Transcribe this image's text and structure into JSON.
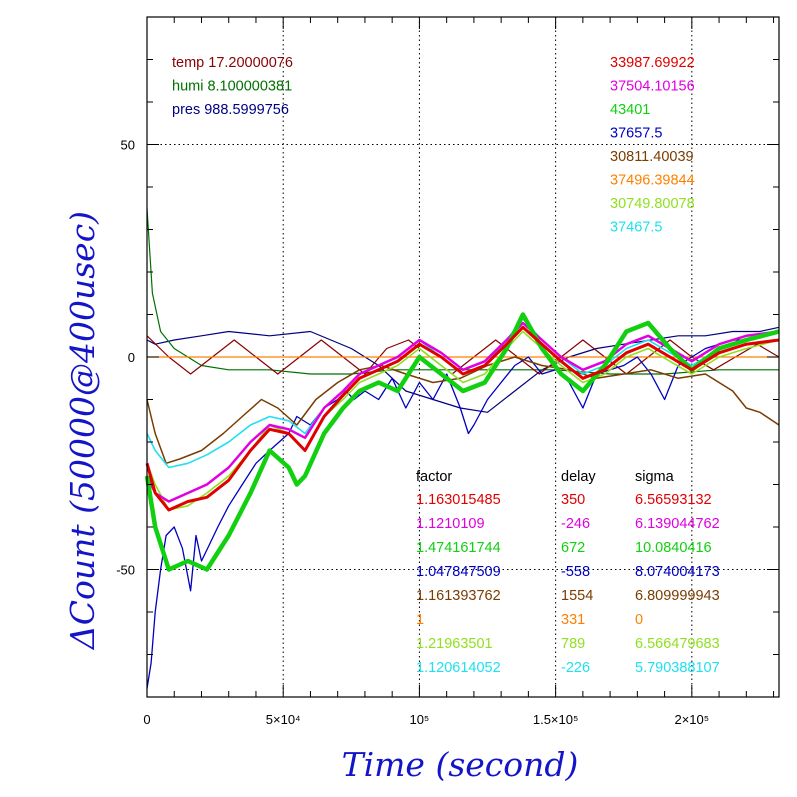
{
  "chart_data": {
    "type": "line",
    "xlabel": "Time (second)",
    "ylabel": "ΔCount (50000@400usec)",
    "xlim": [
      0,
      232000
    ],
    "ylim": [
      -80,
      80
    ],
    "grid": true,
    "x_ticks": [
      {
        "value": 0,
        "label": "0"
      },
      {
        "value": 50000,
        "label": "5×10⁴"
      },
      {
        "value": 100000,
        "label": "10⁵"
      },
      {
        "value": 150000,
        "label": "1.5×10⁵"
      },
      {
        "value": 200000,
        "label": "2×10⁵"
      }
    ],
    "y_ticks": [
      {
        "value": 50,
        "label": "50"
      },
      {
        "value": 0,
        "label": "0"
      },
      {
        "value": -50,
        "label": "-50"
      }
    ],
    "environment": [
      {
        "label": "temp 17.20000076",
        "color": "#8b0000"
      },
      {
        "label": "humi 8.100000381",
        "color": "#007000"
      },
      {
        "label": "pres 988.5999756",
        "color": "#000080"
      }
    ],
    "counts": [
      {
        "value": "33987.69922",
        "color": "#e00000"
      },
      {
        "value": "37504.10156",
        "color": "#e000e0"
      },
      {
        "value": "43401",
        "color": "#10d010"
      },
      {
        "value": "37657.5",
        "color": "#0000c0"
      },
      {
        "value": "30811.40039",
        "color": "#7a3c00"
      },
      {
        "value": "37496.39844",
        "color": "#ff8000"
      },
      {
        "value": "30749.80078",
        "color": "#90e020"
      },
      {
        "value": "37467.5",
        "color": "#20e0f0"
      }
    ],
    "table": {
      "headers": [
        "factor",
        "delay",
        "sigma"
      ],
      "rows": [
        {
          "factor": "1.163015485",
          "delay": "350",
          "sigma": "6.56593132",
          "color": "#e00000"
        },
        {
          "factor": "1.1210109",
          "delay": "-246",
          "sigma": "6.139044762",
          "color": "#e000e0"
        },
        {
          "factor": "1.474161744",
          "delay": "672",
          "sigma": "10.0840416",
          "color": "#10d010"
        },
        {
          "factor": "1.047847509",
          "delay": "-558",
          "sigma": "8.074004173",
          "color": "#0000c0"
        },
        {
          "factor": "1.161393762",
          "delay": "1554",
          "sigma": "6.809999943",
          "color": "#7a3c00"
        },
        {
          "factor": "1",
          "delay": "331",
          "sigma": "0",
          "color": "#ff8000"
        },
        {
          "factor": "1.21963501",
          "delay": "789",
          "sigma": "6.566479683",
          "color": "#90e020"
        },
        {
          "factor": "1.120614052",
          "delay": "-226",
          "sigma": "5.790388107",
          "color": "#20e0f0"
        }
      ]
    },
    "series": [
      {
        "color": "#000080",
        "width": 1.2,
        "x": [
          0,
          3000,
          10000,
          20000,
          30000,
          45000,
          60000,
          75000,
          85000,
          95000,
          105000,
          115000,
          125000,
          135000,
          145000,
          155000,
          165000,
          175000,
          185000,
          195000,
          205000,
          215000,
          225000,
          232000
        ],
        "y": [
          4,
          3,
          4,
          5,
          6,
          5,
          6,
          2,
          -2,
          -8,
          -10,
          -12,
          -13,
          -8,
          -3,
          0,
          2,
          3,
          4,
          5,
          5,
          6,
          6,
          7
        ]
      },
      {
        "color": "#007000",
        "width": 1.2,
        "x": [
          0,
          2000,
          5000,
          10000,
          20000,
          30000,
          45000,
          60000,
          75000,
          90000,
          110000,
          130000,
          150000,
          170000,
          190000,
          210000,
          232000
        ],
        "y": [
          35,
          15,
          6,
          2,
          -2,
          -3,
          -3,
          -4,
          -4,
          -3,
          -3,
          -3,
          -3,
          -4,
          -4,
          -3,
          -3
        ]
      },
      {
        "color": "#8b0000",
        "width": 1.2,
        "x": [
          0,
          8000,
          16000,
          24000,
          32000,
          40000,
          48000,
          56000,
          64000,
          72000,
          80000,
          88000,
          96000,
          104000,
          112000,
          120000,
          128000,
          136000,
          144000,
          152000,
          160000,
          168000,
          176000,
          184000,
          192000,
          200000,
          208000,
          216000,
          224000,
          232000
        ],
        "y": [
          5,
          0,
          -4,
          0,
          4,
          0,
          -4,
          0,
          4,
          0,
          -4,
          2,
          4,
          0,
          -4,
          0,
          4,
          0,
          -4,
          0,
          4,
          0,
          -4,
          0,
          4,
          0,
          -3,
          0,
          3,
          0
        ]
      },
      {
        "color": "#ff8000",
        "width": 1.2,
        "x": [
          0,
          232000
        ],
        "y": [
          0,
          0
        ]
      },
      {
        "color": "#0000c0",
        "width": 1.3,
        "x": [
          0,
          1500,
          3000,
          5000,
          7000,
          10000,
          13000,
          16000,
          18000,
          20000,
          23000,
          26000,
          30000,
          35000,
          40000,
          45000,
          52000,
          55000,
          60000,
          65000,
          70000,
          73000,
          76000,
          80000,
          85000,
          90000,
          95000,
          100000,
          105000,
          110000,
          115000,
          118000,
          120000,
          125000,
          130000,
          135000,
          140000,
          145000,
          150000,
          155000,
          160000,
          165000,
          170000,
          175000,
          180000,
          185000,
          190000,
          195000,
          200000,
          205000,
          210000,
          215000,
          220000,
          225000,
          232000
        ],
        "y": [
          -78,
          -72,
          -60,
          -50,
          -42,
          -40,
          -45,
          -55,
          -42,
          -48,
          -44,
          -40,
          -35,
          -30,
          -25,
          -22,
          -18,
          -14,
          -16,
          -12,
          -10,
          -8,
          -10,
          -8,
          -10,
          -5,
          -12,
          -6,
          -10,
          -4,
          -12,
          -18,
          -16,
          -10,
          -6,
          -2,
          0,
          -4,
          -3,
          -6,
          -12,
          -4,
          -3,
          -2,
          0,
          -4,
          -10,
          -2,
          0,
          2,
          3,
          4,
          4,
          5,
          6
        ]
      },
      {
        "color": "#7a3c00",
        "width": 1.5,
        "x": [
          0,
          3000,
          7000,
          12000,
          20000,
          28000,
          35000,
          42000,
          48000,
          55000,
          62000,
          70000,
          78000,
          86000,
          95000,
          105000,
          115000,
          125000,
          135000,
          145000,
          155000,
          165000,
          175000,
          185000,
          195000,
          205000,
          215000,
          220000,
          225000,
          232000
        ],
        "y": [
          -10,
          -18,
          -25,
          -24,
          -22,
          -18,
          -14,
          -10,
          -12,
          -16,
          -10,
          -6,
          -3,
          -2,
          -4,
          -6,
          -5,
          -2,
          0,
          -2,
          -3,
          -5,
          -4,
          -3,
          -5,
          -4,
          -8,
          -12,
          -13,
          -16
        ]
      },
      {
        "color": "#20e0f0",
        "width": 1.6,
        "x": [
          0,
          3000,
          8000,
          15000,
          22000,
          30000,
          38000,
          45000,
          52000,
          58000,
          65000,
          72000,
          78000,
          85000,
          92000,
          100000,
          108000,
          116000,
          124000,
          132000,
          138000,
          145000,
          152000,
          160000,
          168000,
          176000,
          184000,
          192000,
          200000,
          210000,
          220000,
          232000
        ],
        "y": [
          -18,
          -22,
          -26,
          -25,
          -23,
          -20,
          -16,
          -14,
          -15,
          -18,
          -12,
          -8,
          -4,
          -2,
          0,
          4,
          0,
          -4,
          -2,
          4,
          9,
          4,
          0,
          -4,
          -2,
          2,
          4,
          1,
          -2,
          2,
          4,
          6
        ]
      },
      {
        "color": "#90e020",
        "width": 1.6,
        "x": [
          0,
          3000,
          8000,
          15000,
          22000,
          30000,
          38000,
          45000,
          52000,
          58000,
          65000,
          72000,
          78000,
          85000,
          92000,
          100000,
          108000,
          116000,
          124000,
          132000,
          138000,
          145000,
          152000,
          160000,
          168000,
          176000,
          184000,
          192000,
          200000,
          210000,
          220000,
          232000
        ],
        "y": [
          -25,
          -30,
          -36,
          -35,
          -32,
          -28,
          -22,
          -16,
          -18,
          -22,
          -14,
          -10,
          -6,
          -4,
          -2,
          2,
          -2,
          -6,
          -4,
          2,
          6,
          2,
          -2,
          -6,
          -4,
          0,
          2,
          -1,
          -4,
          0,
          2,
          4
        ]
      },
      {
        "color": "#e000e0",
        "width": 2.5,
        "x": [
          0,
          3000,
          8000,
          15000,
          22000,
          30000,
          38000,
          45000,
          52000,
          58000,
          65000,
          72000,
          78000,
          85000,
          92000,
          100000,
          108000,
          116000,
          124000,
          132000,
          138000,
          145000,
          152000,
          160000,
          168000,
          176000,
          184000,
          192000,
          200000,
          210000,
          220000,
          232000
        ],
        "y": [
          -28,
          -32,
          -34,
          -32,
          -30,
          -26,
          -20,
          -16,
          -17,
          -19,
          -12,
          -8,
          -4,
          -2,
          0,
          4,
          1,
          -3,
          -1,
          4,
          8,
          4,
          0,
          -3,
          -1,
          3,
          5,
          2,
          -1,
          3,
          5,
          6
        ]
      },
      {
        "color": "#10d010",
        "width": 4.5,
        "x": [
          0,
          3000,
          8000,
          15000,
          22000,
          30000,
          38000,
          45000,
          52000,
          55000,
          58000,
          65000,
          72000,
          78000,
          85000,
          92000,
          100000,
          108000,
          116000,
          124000,
          132000,
          138000,
          145000,
          152000,
          160000,
          168000,
          176000,
          184000,
          192000,
          200000,
          210000,
          220000,
          232000
        ],
        "y": [
          -28,
          -40,
          -50,
          -48,
          -50,
          -42,
          -32,
          -22,
          -26,
          -30,
          -28,
          -18,
          -12,
          -8,
          -6,
          -8,
          0,
          -4,
          -8,
          -6,
          2,
          10,
          2,
          -4,
          -8,
          -2,
          6,
          8,
          2,
          -3,
          2,
          4,
          6
        ]
      },
      {
        "color": "#e00000",
        "width": 3,
        "x": [
          0,
          3000,
          8000,
          15000,
          22000,
          30000,
          38000,
          45000,
          52000,
          58000,
          65000,
          72000,
          78000,
          85000,
          92000,
          100000,
          108000,
          116000,
          124000,
          132000,
          138000,
          145000,
          152000,
          160000,
          168000,
          176000,
          184000,
          192000,
          200000,
          210000,
          220000,
          232000
        ],
        "y": [
          -25,
          -32,
          -36,
          -34,
          -33,
          -29,
          -22,
          -17,
          -18,
          -22,
          -14,
          -9,
          -5,
          -3,
          -1,
          3,
          0,
          -4,
          -2,
          3,
          7,
          3,
          -1,
          -5,
          -3,
          1,
          3,
          0,
          -3,
          1,
          3,
          4
        ]
      }
    ]
  }
}
